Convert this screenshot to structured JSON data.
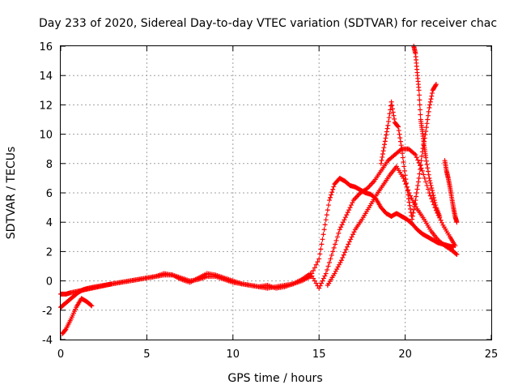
{
  "chart_data": {
    "type": "scatter",
    "title": "Day 233 of 2020, Sidereal Day-to-day VTEC variation (SDTVAR) for receiver chac",
    "xlabel": "GPS time / hours",
    "ylabel": "SDTVAR / TECUs",
    "xlim": [
      0,
      25
    ],
    "ylim": [
      -4,
      16
    ],
    "xticks": [
      "0",
      "5",
      "10",
      "15",
      "20",
      "25"
    ],
    "yticks": [
      "-4",
      "-2",
      "0",
      "2",
      "4",
      "6",
      "8",
      "10",
      "12",
      "14",
      "16"
    ],
    "grid": true,
    "marker": "+",
    "color": "#ff0000",
    "series": [
      {
        "name": "trace-a",
        "x": [
          0.0,
          0.2,
          0.5,
          0.8,
          1.0,
          1.3,
          1.6,
          2.0,
          2.5,
          3.0,
          3.5,
          4.0,
          4.5,
          5.0,
          5.5,
          6.0,
          6.5,
          7.0,
          7.5,
          8.0,
          8.5,
          9.0,
          9.5,
          10.0,
          10.5,
          11.0,
          11.5,
          12.0,
          12.5,
          13.0,
          13.5,
          14.0,
          14.5,
          15.0,
          15.3,
          15.6,
          15.9,
          16.2,
          16.5,
          16.8,
          17.1,
          17.4,
          17.7,
          18.0,
          18.3,
          18.6,
          18.9,
          19.2,
          19.5,
          19.8,
          20.1,
          20.4,
          20.7,
          21.0,
          21.3,
          21.6,
          21.9,
          22.2,
          22.5,
          22.8
        ],
        "y": [
          -1.8,
          -1.6,
          -1.3,
          -1.0,
          -0.8,
          -0.6,
          -0.5,
          -0.4,
          -0.3,
          -0.2,
          -0.1,
          0.0,
          0.1,
          0.2,
          0.3,
          0.4,
          0.4,
          0.2,
          0.0,
          0.1,
          0.3,
          0.3,
          0.1,
          -0.1,
          -0.2,
          -0.3,
          -0.4,
          -0.5,
          -0.4,
          -0.3,
          -0.2,
          0.0,
          0.3,
          1.5,
          3.5,
          5.5,
          6.6,
          7.0,
          6.8,
          6.5,
          6.4,
          6.2,
          6.0,
          5.9,
          5.6,
          5.0,
          4.6,
          4.4,
          4.6,
          4.4,
          4.2,
          3.9,
          3.5,
          3.2,
          3.0,
          2.8,
          2.6,
          2.5,
          2.4,
          2.3
        ]
      },
      {
        "name": "trace-b",
        "x": [
          0.0,
          0.3,
          0.6,
          1.0,
          1.4,
          1.8,
          2.2,
          2.6,
          3.0,
          3.5,
          4.0,
          4.5,
          5.0,
          5.5,
          6.0,
          6.5,
          7.0,
          7.5,
          8.0,
          8.5,
          9.0,
          9.5,
          10.0,
          10.5,
          11.0,
          11.5,
          12.0,
          12.5,
          13.0,
          13.5,
          14.0,
          14.5,
          15.0,
          15.4,
          15.8,
          16.2,
          16.6,
          17.0,
          17.4,
          17.8,
          18.2,
          18.6,
          19.0,
          19.4,
          19.8,
          20.2,
          20.6,
          21.0,
          21.4,
          21.8,
          22.2,
          22.6,
          22.9
        ],
        "y": [
          -0.9,
          -0.9,
          -0.8,
          -0.7,
          -0.6,
          -0.5,
          -0.4,
          -0.3,
          -0.2,
          -0.1,
          0.0,
          0.1,
          0.2,
          0.3,
          0.5,
          0.4,
          0.1,
          -0.1,
          0.2,
          0.5,
          0.4,
          0.2,
          0.0,
          -0.2,
          -0.3,
          -0.4,
          -0.3,
          -0.5,
          -0.4,
          -0.2,
          0.1,
          0.5,
          -0.5,
          0.5,
          2.0,
          3.5,
          4.5,
          5.5,
          6.0,
          6.3,
          6.8,
          7.5,
          8.2,
          8.6,
          9.0,
          9.0,
          8.6,
          7.5,
          6.0,
          4.8,
          3.8,
          3.0,
          2.4
        ]
      },
      {
        "name": "trace-c",
        "x": [
          15.5,
          15.9,
          16.3,
          16.7,
          17.1,
          17.5,
          17.9,
          18.3,
          18.7,
          19.1,
          19.5,
          19.9,
          20.3,
          20.7,
          21.1,
          21.5,
          21.9,
          22.3,
          22.7,
          23.0
        ],
        "y": [
          -0.3,
          0.5,
          1.4,
          2.5,
          3.5,
          4.2,
          5.0,
          5.8,
          6.5,
          7.2,
          7.8,
          7.0,
          5.8,
          4.9,
          4.2,
          3.4,
          2.8,
          2.4,
          2.1,
          1.8
        ]
      },
      {
        "name": "trace-d",
        "x": [
          0.1,
          0.3,
          0.6,
          0.9,
          1.2,
          1.5,
          1.8
        ],
        "y": [
          -3.6,
          -3.3,
          -2.6,
          -1.8,
          -1.2,
          -1.4,
          -1.7
        ]
      },
      {
        "name": "trace-e",
        "x": [
          18.6,
          18.8,
          19.0,
          19.2,
          19.4,
          19.6,
          19.8,
          20.0,
          20.2,
          20.4,
          20.6,
          20.8,
          21.0,
          21.2,
          21.4,
          21.6,
          21.8
        ],
        "y": [
          8.0,
          9.3,
          10.6,
          12.2,
          10.8,
          10.5,
          9.0,
          7.2,
          5.6,
          4.2,
          5.5,
          7.0,
          8.8,
          10.2,
          11.8,
          13.0,
          13.4
        ]
      },
      {
        "name": "trace-f",
        "x": [
          20.5,
          20.6,
          20.7,
          20.8,
          20.9,
          21.0,
          21.1,
          21.2,
          21.4,
          21.6,
          21.8,
          22.0
        ],
        "y": [
          16.0,
          15.5,
          14.2,
          13.0,
          11.0,
          10.2,
          9.2,
          8.4,
          7.0,
          6.0,
          5.0,
          4.4
        ]
      },
      {
        "name": "trace-g",
        "x": [
          22.3,
          22.4,
          22.5,
          22.6,
          22.7,
          22.8,
          22.9,
          23.0
        ],
        "y": [
          8.2,
          7.5,
          7.0,
          6.4,
          5.7,
          5.0,
          4.4,
          4.0
        ]
      }
    ]
  }
}
